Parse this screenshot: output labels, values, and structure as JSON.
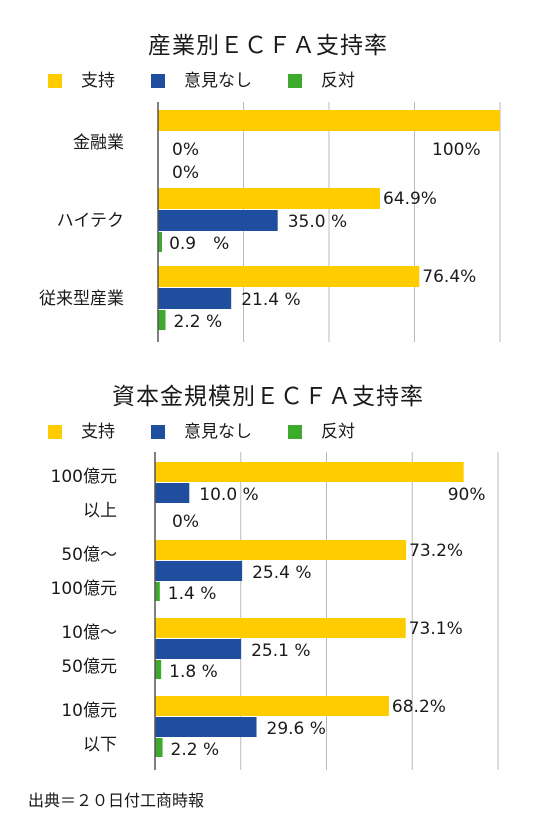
{
  "legend": {
    "support": "支持",
    "no_opinion": "意見なし",
    "against": "反対"
  },
  "colors": {
    "support": "#FFCC00",
    "no_opinion": "#1F4E9E",
    "against": "#3DAA2E",
    "grid": "#BBBBBB",
    "axis": "#555555"
  },
  "source": "出典＝２０日付工商時報",
  "chart_data": [
    {
      "type": "bar",
      "orientation": "horizontal",
      "title": "産業別ＥＣＦＡ支持率",
      "legend_position": "top",
      "grid": true,
      "xlim": [
        0,
        100
      ],
      "categories": [
        "金融業",
        "ハイテク",
        "従来型産業"
      ],
      "series": [
        {
          "name": "支持",
          "values": [
            100,
            64.9,
            76.4
          ],
          "labels": [
            "100%",
            "64.9%",
            "76.4%"
          ]
        },
        {
          "name": "意見なし",
          "values": [
            0,
            35.0,
            21.4
          ],
          "labels": [
            "0%",
            "35.0 %",
            "21.4 %"
          ]
        },
        {
          "name": "反対",
          "values": [
            0,
            0.9,
            2.2
          ],
          "labels": [
            "0%",
            "0.9　%",
            "2.2 %"
          ]
        }
      ]
    },
    {
      "type": "bar",
      "orientation": "horizontal",
      "title": "資本金規模別ＥＣＦＡ支持率",
      "legend_position": "top",
      "grid": true,
      "xlim": [
        0,
        100
      ],
      "categories": [
        [
          "100億元",
          "以上"
        ],
        [
          "50億〜",
          "100億元"
        ],
        [
          "10億〜",
          "50億元"
        ],
        [
          "10億元",
          "以下"
        ]
      ],
      "series": [
        {
          "name": "支持",
          "values": [
            90,
            73.2,
            73.1,
            68.2
          ],
          "labels": [
            "90%",
            "73.2%",
            "73.1%",
            "68.2%"
          ]
        },
        {
          "name": "意見なし",
          "values": [
            10.0,
            25.4,
            25.1,
            29.6
          ],
          "labels": [
            "10.0 %",
            "25.4 %",
            "25.1 %",
            "29.6 %"
          ]
        },
        {
          "name": "反対",
          "values": [
            0,
            1.4,
            1.8,
            2.2
          ],
          "labels": [
            "0%",
            "1.4 %",
            "1.8 %",
            "2.2 %"
          ]
        }
      ]
    }
  ]
}
